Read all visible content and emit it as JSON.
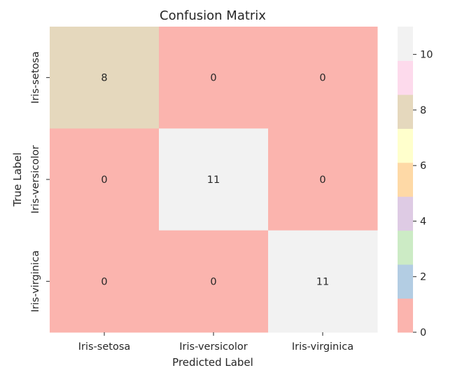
{
  "chart_data": {
    "type": "heatmap",
    "title": "Confusion Matrix",
    "xlabel": "Predicted Label",
    "ylabel": "True Label",
    "x_categories": [
      "Iris-setosa",
      "Iris-versicolor",
      "Iris-virginica"
    ],
    "y_categories": [
      "Iris-setosa",
      "Iris-versicolor",
      "Iris-virginica"
    ],
    "values": [
      [
        8,
        0,
        0
      ],
      [
        0,
        11,
        0
      ],
      [
        0,
        0,
        11
      ]
    ],
    "annotations": true,
    "colormap": "Pastel1",
    "colorbar": {
      "range": [
        0,
        11
      ],
      "ticks": [
        0,
        2,
        4,
        6,
        8,
        10
      ],
      "colors": [
        "#fbb4ae",
        "#b3cde3",
        "#ccebc5",
        "#decbe4",
        "#fed9a6",
        "#ffffcc",
        "#e5d8bd",
        "#fddaec",
        "#f2f2f2"
      ]
    }
  }
}
